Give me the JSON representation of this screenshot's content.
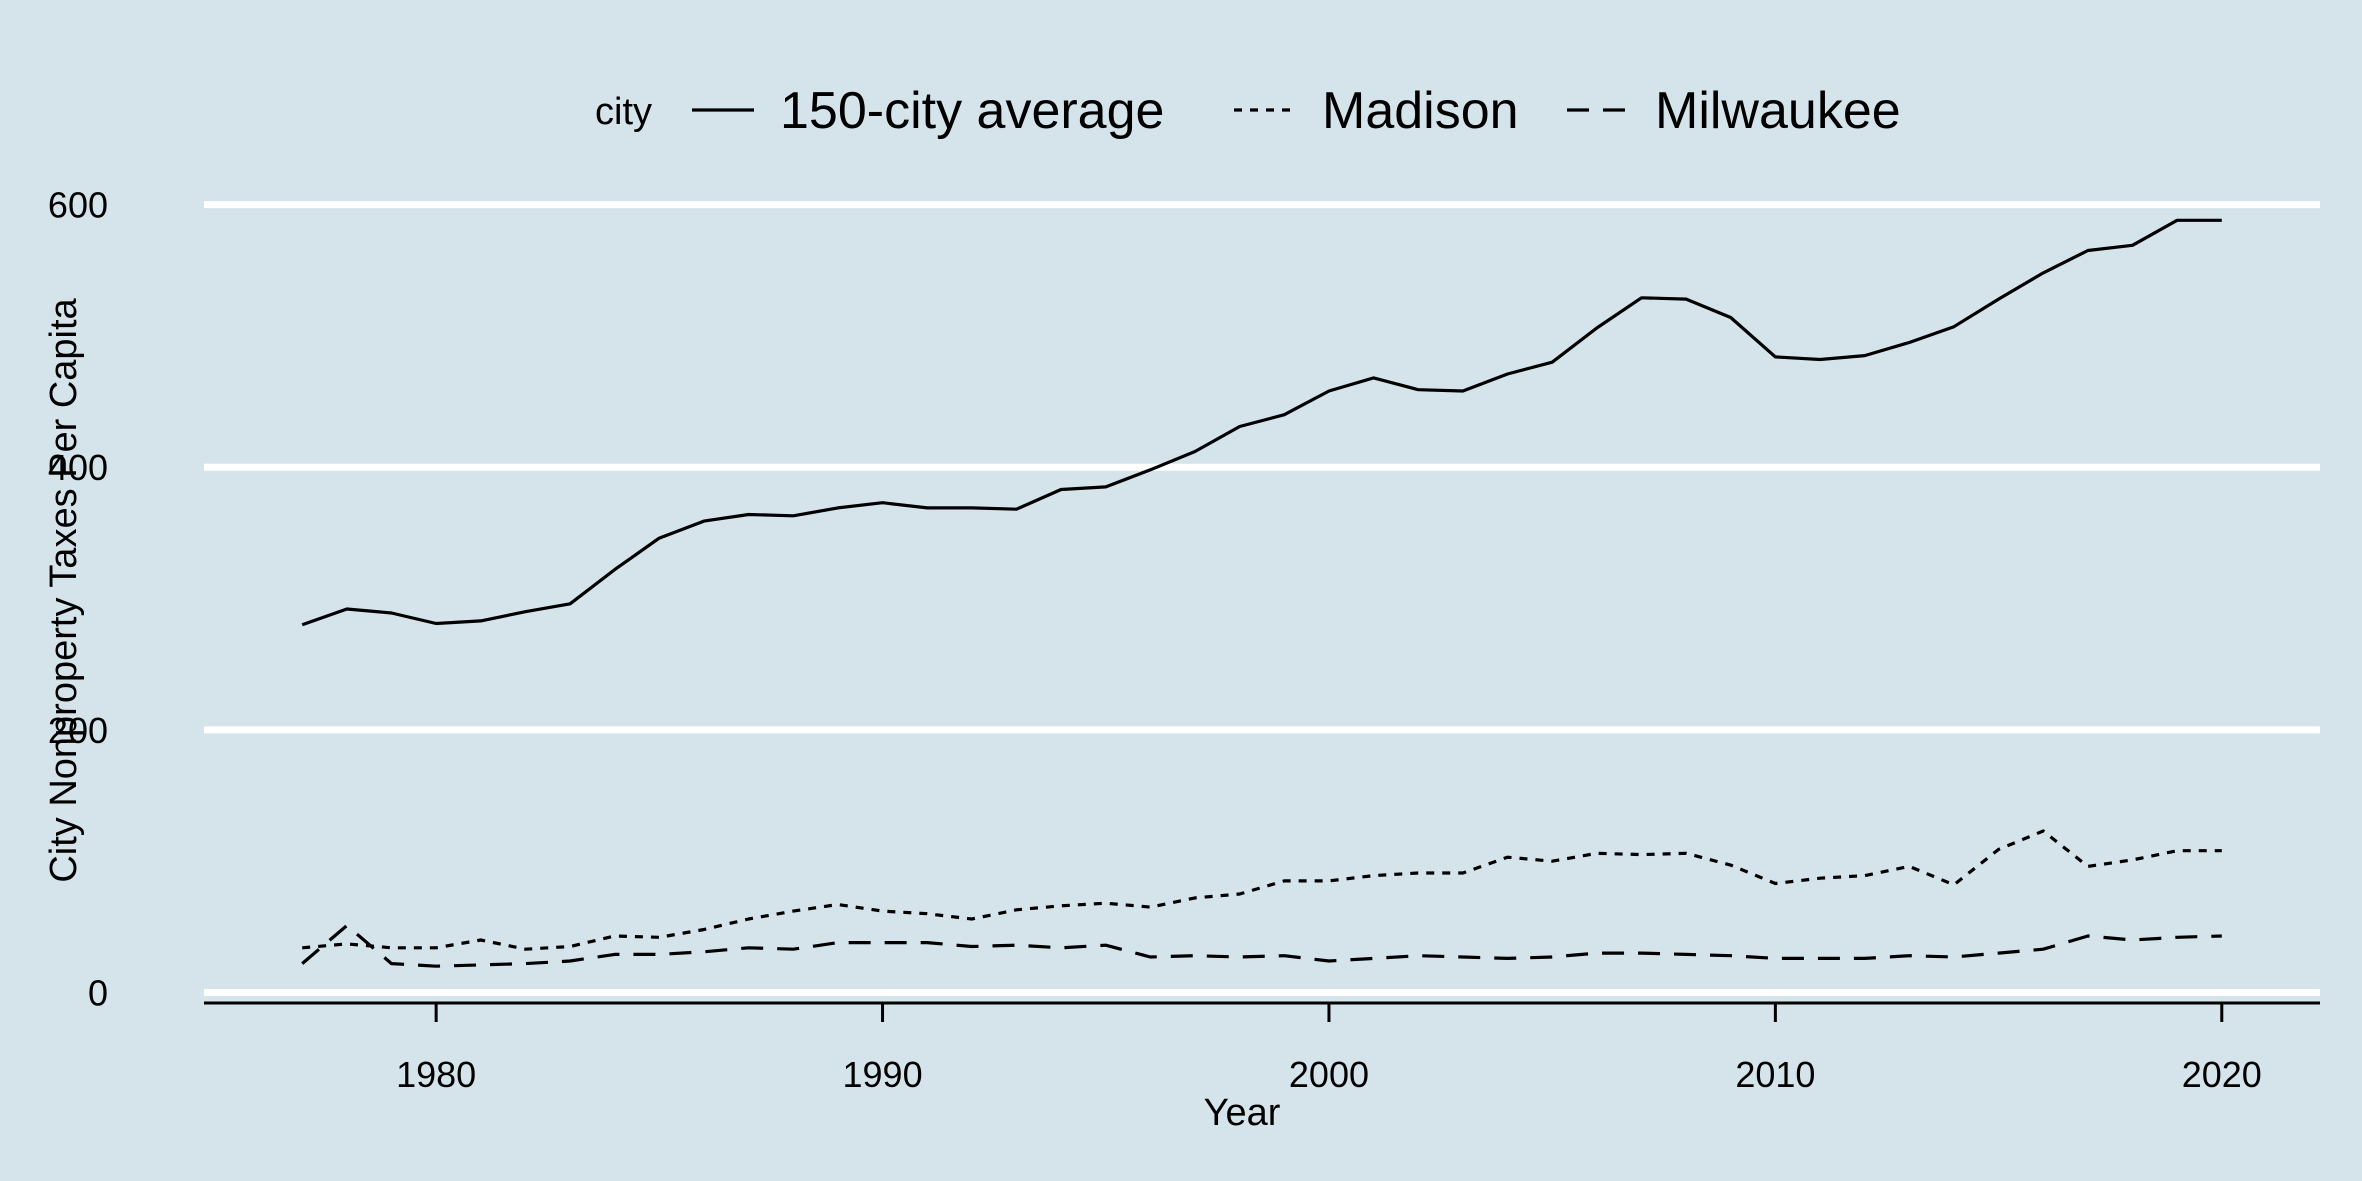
{
  "chart_data": {
    "type": "line",
    "title": "",
    "xlabel": "Year",
    "ylabel": "City Nonproperty Taxes Per Capita",
    "xlim": [
      1974.8,
      2022.2
    ],
    "ylim": [
      -8,
      605
    ],
    "x_ticks": [
      1980,
      1990,
      2000,
      2010,
      2020
    ],
    "y_ticks": [
      0,
      200,
      400,
      600
    ],
    "grid": "horizontal major",
    "legend_position": "top",
    "legend_title": "city",
    "x": [
      1977,
      1978,
      1979,
      1980,
      1981,
      1982,
      1983,
      1984,
      1985,
      1986,
      1987,
      1988,
      1989,
      1990,
      1991,
      1992,
      1993,
      1994,
      1995,
      1996,
      1997,
      1998,
      1999,
      2000,
      2001,
      2002,
      2003,
      2004,
      2005,
      2006,
      2007,
      2008,
      2009,
      2010,
      2011,
      2012,
      2013,
      2014,
      2015,
      2016,
      2017,
      2018,
      2019,
      2020
    ],
    "series": [
      {
        "name": "150-city average",
        "dash": "solid",
        "values": [
          280,
          292,
          289,
          281,
          283,
          290,
          296,
          322,
          346,
          359,
          364,
          363,
          369,
          373,
          369,
          369,
          368,
          383,
          385,
          398,
          412,
          431,
          440,
          458,
          468,
          459,
          458,
          471,
          480,
          506,
          529,
          528,
          514,
          484,
          482,
          485,
          495,
          507,
          528,
          548,
          565,
          569,
          588,
          588
        ]
      },
      {
        "name": "Madison",
        "dash": "dotted",
        "values": [
          34,
          37,
          34,
          34,
          40,
          33,
          35,
          43,
          42,
          48,
          56,
          62,
          67,
          62,
          60,
          56,
          63,
          66,
          68,
          65,
          72,
          75,
          85,
          85,
          89,
          91,
          91,
          103,
          100,
          106,
          105,
          106,
          97,
          83,
          87,
          89,
          96,
          82,
          109,
          123,
          96,
          101,
          108,
          108
        ]
      },
      {
        "name": "Milwaukee",
        "dash": "dashed",
        "values": [
          22,
          51,
          22,
          20,
          21,
          22,
          24,
          29,
          29,
          31,
          34,
          33,
          38,
          38,
          38,
          35,
          36,
          34,
          36,
          27,
          28,
          27,
          28,
          24,
          26,
          28,
          27,
          26,
          27,
          30,
          30,
          29,
          28,
          26,
          26,
          26,
          28,
          27,
          30,
          33,
          43,
          40,
          42,
          43
        ]
      }
    ],
    "colors": {
      "background": "#d5e4eb",
      "grid": "#ffffff",
      "line": "#000000"
    }
  }
}
